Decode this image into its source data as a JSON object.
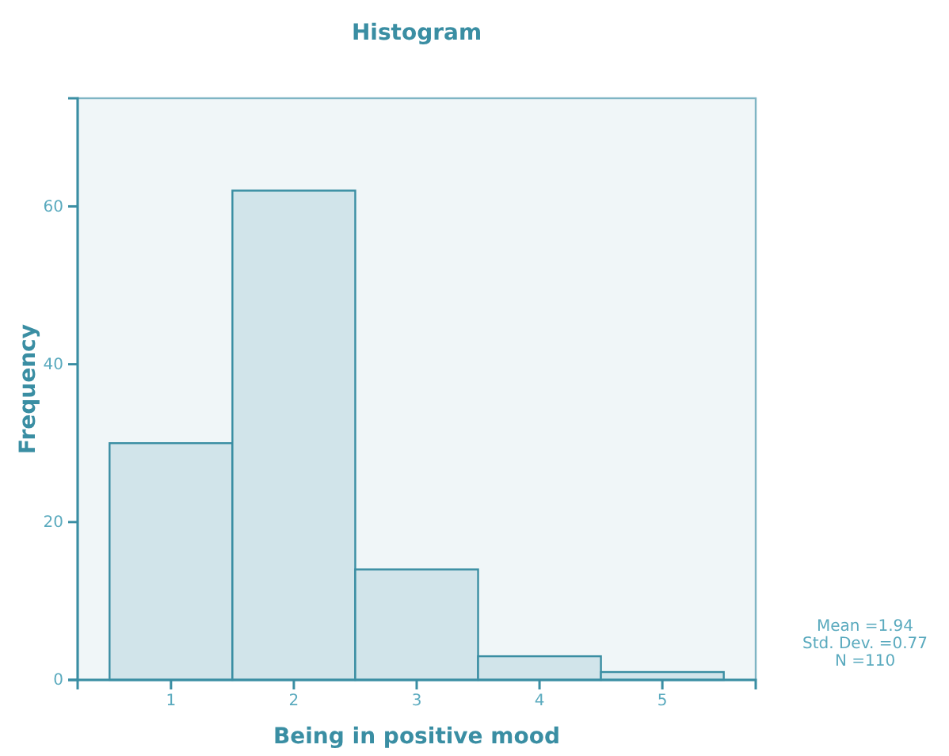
{
  "chart_data": {
    "type": "histogram",
    "title": "Histogram",
    "xlabel": "Being in positive mood",
    "ylabel": "Frequency",
    "bins": [
      0.5,
      1.5,
      2.5,
      3.5,
      4.5,
      5.5
    ],
    "values": [
      30,
      62,
      14,
      3,
      1
    ],
    "color": "#d1e4ea",
    "xlim": [
      0.24,
      5.76
    ],
    "xticks": [
      1,
      2,
      3,
      4,
      5
    ],
    "ylim": [
      0,
      73.7
    ],
    "yticks": [
      0,
      20,
      40,
      60
    ],
    "grid": false,
    "annotations": [
      "Mean =1.94",
      "Std. Dev. =0.77",
      "N =110"
    ]
  }
}
